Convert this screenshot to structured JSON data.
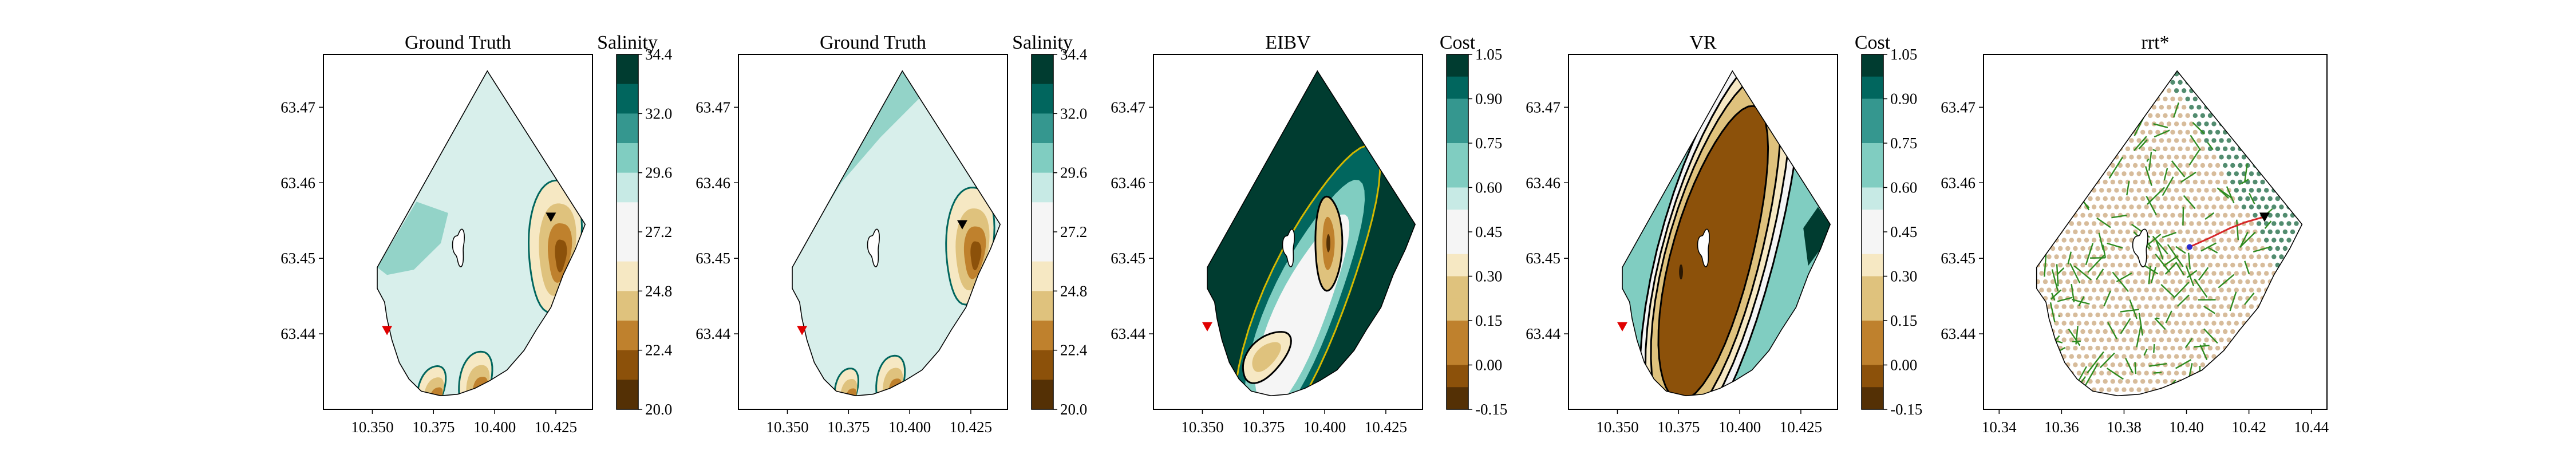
{
  "colors": {
    "brbg": [
      "#543005",
      "#8c510a",
      "#bf812d",
      "#dfc27d",
      "#f6e8c3",
      "#f5f5f5",
      "#c7eae5",
      "#80cdc1",
      "#35978f",
      "#01665e",
      "#003c30"
    ],
    "boundary": "#000000",
    "start_marker": "#e00000",
    "end_marker": "#000000",
    "tree": "#2e8b1f",
    "path": "#d62728"
  },
  "chart_data": [
    {
      "type": "heatmap",
      "title": "Ground Truth",
      "colorbar_label": "Salinity",
      "colorbar_ticks": [
        "34.4",
        "32.0",
        "29.6",
        "27.2",
        "24.8",
        "22.4",
        "20.0"
      ],
      "x_ticks": [
        "10.350",
        "10.375",
        "10.400",
        "10.425"
      ],
      "y_ticks": [
        "63.47",
        "63.46",
        "63.45",
        "63.44"
      ],
      "xlim": [
        10.33,
        10.44
      ],
      "ylim": [
        63.43,
        63.477
      ],
      "markers": [
        {
          "kind": "start",
          "x": 10.356,
          "y": 63.4405
        },
        {
          "kind": "end",
          "x": 10.423,
          "y": 63.4555
        }
      ]
    },
    {
      "type": "heatmap",
      "title": "Ground Truth",
      "colorbar_label": "Salinity",
      "colorbar_ticks": [
        "34.4",
        "32.0",
        "29.6",
        "27.2",
        "24.8",
        "22.4",
        "20.0"
      ],
      "x_ticks": [
        "10.350",
        "10.375",
        "10.400",
        "10.425"
      ],
      "y_ticks": [
        "63.47",
        "63.46",
        "63.45",
        "63.44"
      ],
      "xlim": [
        10.33,
        10.44
      ],
      "ylim": [
        63.43,
        63.477
      ],
      "markers": [
        {
          "kind": "start",
          "x": 10.356,
          "y": 63.4405
        },
        {
          "kind": "end",
          "x": 10.4215,
          "y": 63.4545
        }
      ]
    },
    {
      "type": "heatmap",
      "title": "EIBV",
      "colorbar_label": "Cost",
      "colorbar_ticks": [
        "1.05",
        "0.90",
        "0.75",
        "0.60",
        "0.45",
        "0.30",
        "0.15",
        "0.00",
        "-0.15"
      ],
      "x_ticks": [
        "10.350",
        "10.375",
        "10.400",
        "10.425"
      ],
      "y_ticks": [
        "63.47",
        "63.46",
        "63.45",
        "63.44"
      ],
      "xlim": [
        10.33,
        10.44
      ],
      "ylim": [
        63.43,
        63.477
      ],
      "markers": [
        {
          "kind": "start",
          "x": 10.352,
          "y": 63.441
        }
      ]
    },
    {
      "type": "heatmap",
      "title": "VR",
      "colorbar_label": "Cost",
      "colorbar_ticks": [
        "1.05",
        "0.90",
        "0.75",
        "0.60",
        "0.45",
        "0.30",
        "0.15",
        "0.00",
        "-0.15"
      ],
      "x_ticks": [
        "10.350",
        "10.375",
        "10.400",
        "10.425"
      ],
      "y_ticks": [
        "63.47",
        "63.46",
        "63.45",
        "63.44"
      ],
      "xlim": [
        10.33,
        10.44
      ],
      "ylim": [
        63.43,
        63.477
      ],
      "markers": [
        {
          "kind": "start",
          "x": 10.352,
          "y": 63.441
        }
      ]
    },
    {
      "type": "scatter",
      "title": "rrt*",
      "x_ticks": [
        "10.34",
        "10.36",
        "10.38",
        "10.40",
        "10.42",
        "10.44"
      ],
      "y_ticks": [
        "63.47",
        "63.46",
        "63.45",
        "63.44"
      ],
      "xlim": [
        10.335,
        10.445
      ],
      "ylim": [
        63.43,
        63.477
      ],
      "markers": [
        {
          "kind": "end",
          "x": 10.425,
          "y": 63.4555
        }
      ]
    }
  ]
}
